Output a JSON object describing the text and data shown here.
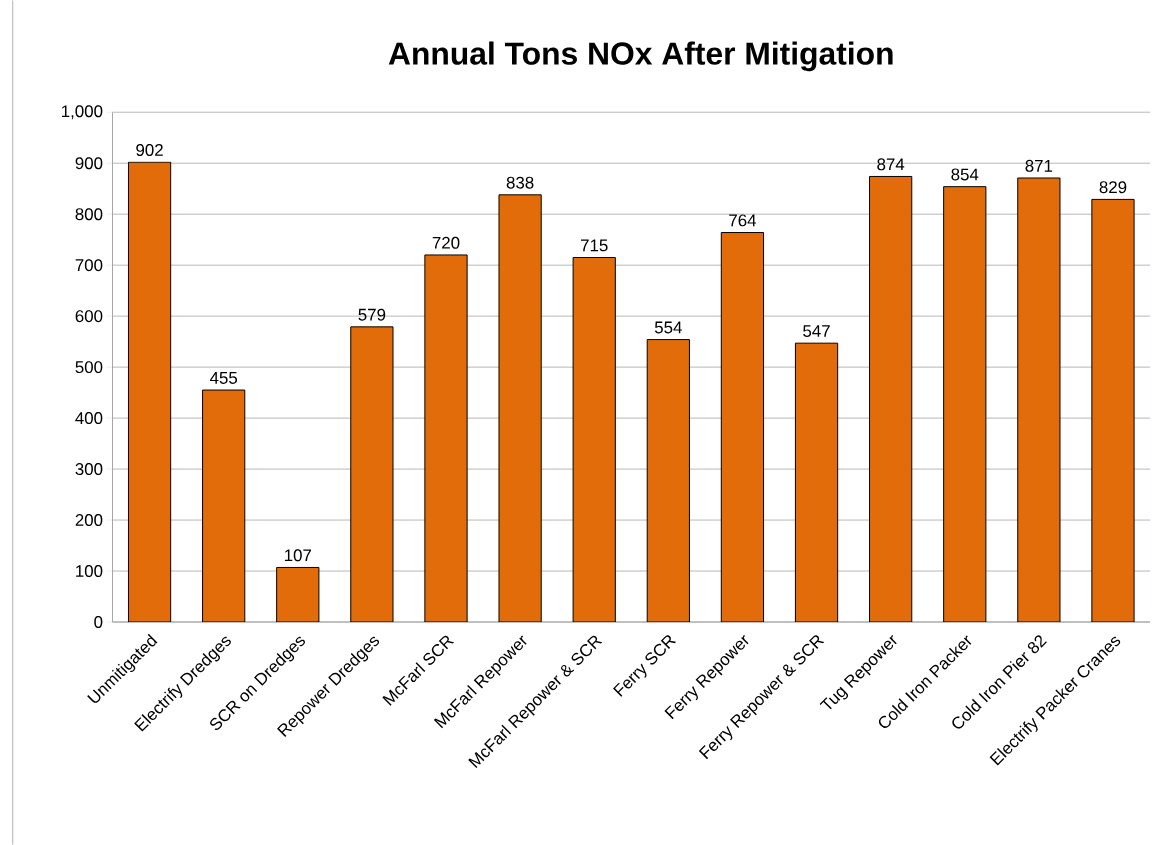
{
  "chart_data": {
    "type": "bar",
    "title": "Annual Tons NOx After Mitigation",
    "categories": [
      "Unmitigated",
      "Electrify Dredges",
      "SCR on Dredges",
      "Repower Dredges",
      "McFarl SCR",
      "McFarl Repower",
      "McFarl Repower & SCR",
      "Ferry SCR",
      "Ferry Repower",
      "Ferry Repower & SCR",
      "Tug Repower",
      "Cold Iron Packer",
      "Cold Iron Pier 82",
      "Electrify Packer Cranes"
    ],
    "values": [
      902,
      455,
      107,
      579,
      720,
      838,
      715,
      554,
      764,
      547,
      874,
      854,
      871,
      829
    ],
    "color": "#e36c0a",
    "ylim": [
      0,
      1000
    ],
    "yticks": [
      0,
      100,
      200,
      300,
      400,
      500,
      600,
      700,
      800,
      900,
      {
        "value": 1000,
        "label": "1,000"
      }
    ],
    "grid": "y",
    "data_labels": true
  }
}
